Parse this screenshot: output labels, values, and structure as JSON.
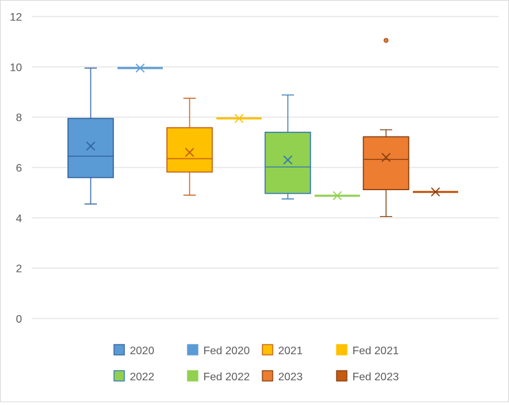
{
  "chart_data": {
    "type": "box",
    "title": "",
    "xlabel": "",
    "ylabel": "",
    "ylim": [
      0,
      12
    ],
    "y_ticks": [
      0,
      2,
      4,
      6,
      8,
      10,
      12
    ],
    "grid": true,
    "legend_position": "bottom",
    "series": [
      {
        "name": "2020",
        "color": "#5b9bd5",
        "edge": "#2e5e9c",
        "min": 4.55,
        "q1": 5.6,
        "median": 6.45,
        "q3": 7.95,
        "max": 9.95,
        "mean": 6.85,
        "outliers": []
      },
      {
        "name": "Fed 2020",
        "color": "#5b9bd5",
        "edge": "#5b9bd5",
        "min": 9.95,
        "q1": 9.95,
        "median": 9.95,
        "q3": 9.95,
        "max": 9.95,
        "mean": 9.95,
        "outliers": []
      },
      {
        "name": "2021",
        "color": "#ffc000",
        "edge": "#c55a11",
        "min": 4.9,
        "q1": 5.82,
        "median": 6.35,
        "q3": 7.58,
        "max": 8.75,
        "mean": 6.6,
        "outliers": []
      },
      {
        "name": "Fed 2021",
        "color": "#ffc000",
        "edge": "#ffc000",
        "min": 7.95,
        "q1": 7.95,
        "median": 7.95,
        "q3": 7.95,
        "max": 7.95,
        "mean": 7.95,
        "outliers": []
      },
      {
        "name": "2022",
        "color": "#92d050",
        "edge": "#2e75b6",
        "min": 4.75,
        "q1": 4.97,
        "median": 6.02,
        "q3": 7.4,
        "max": 8.88,
        "mean": 6.3,
        "outliers": []
      },
      {
        "name": "Fed 2022",
        "color": "#92d050",
        "edge": "#92d050",
        "min": 4.88,
        "q1": 4.88,
        "median": 4.88,
        "q3": 4.88,
        "max": 4.88,
        "mean": 4.88,
        "outliers": []
      },
      {
        "name": "2023",
        "color": "#ed7d31",
        "edge": "#843c0c",
        "min": 4.05,
        "q1": 5.12,
        "median": 6.32,
        "q3": 7.22,
        "max": 7.5,
        "mean": 6.4,
        "outliers": [
          11.05
        ]
      },
      {
        "name": "Fed 2023",
        "color": "#c55a11",
        "edge": "#843c0c",
        "min": 5.03,
        "q1": 5.03,
        "median": 5.03,
        "q3": 5.03,
        "max": 5.03,
        "mean": 5.03,
        "outliers": []
      }
    ]
  }
}
